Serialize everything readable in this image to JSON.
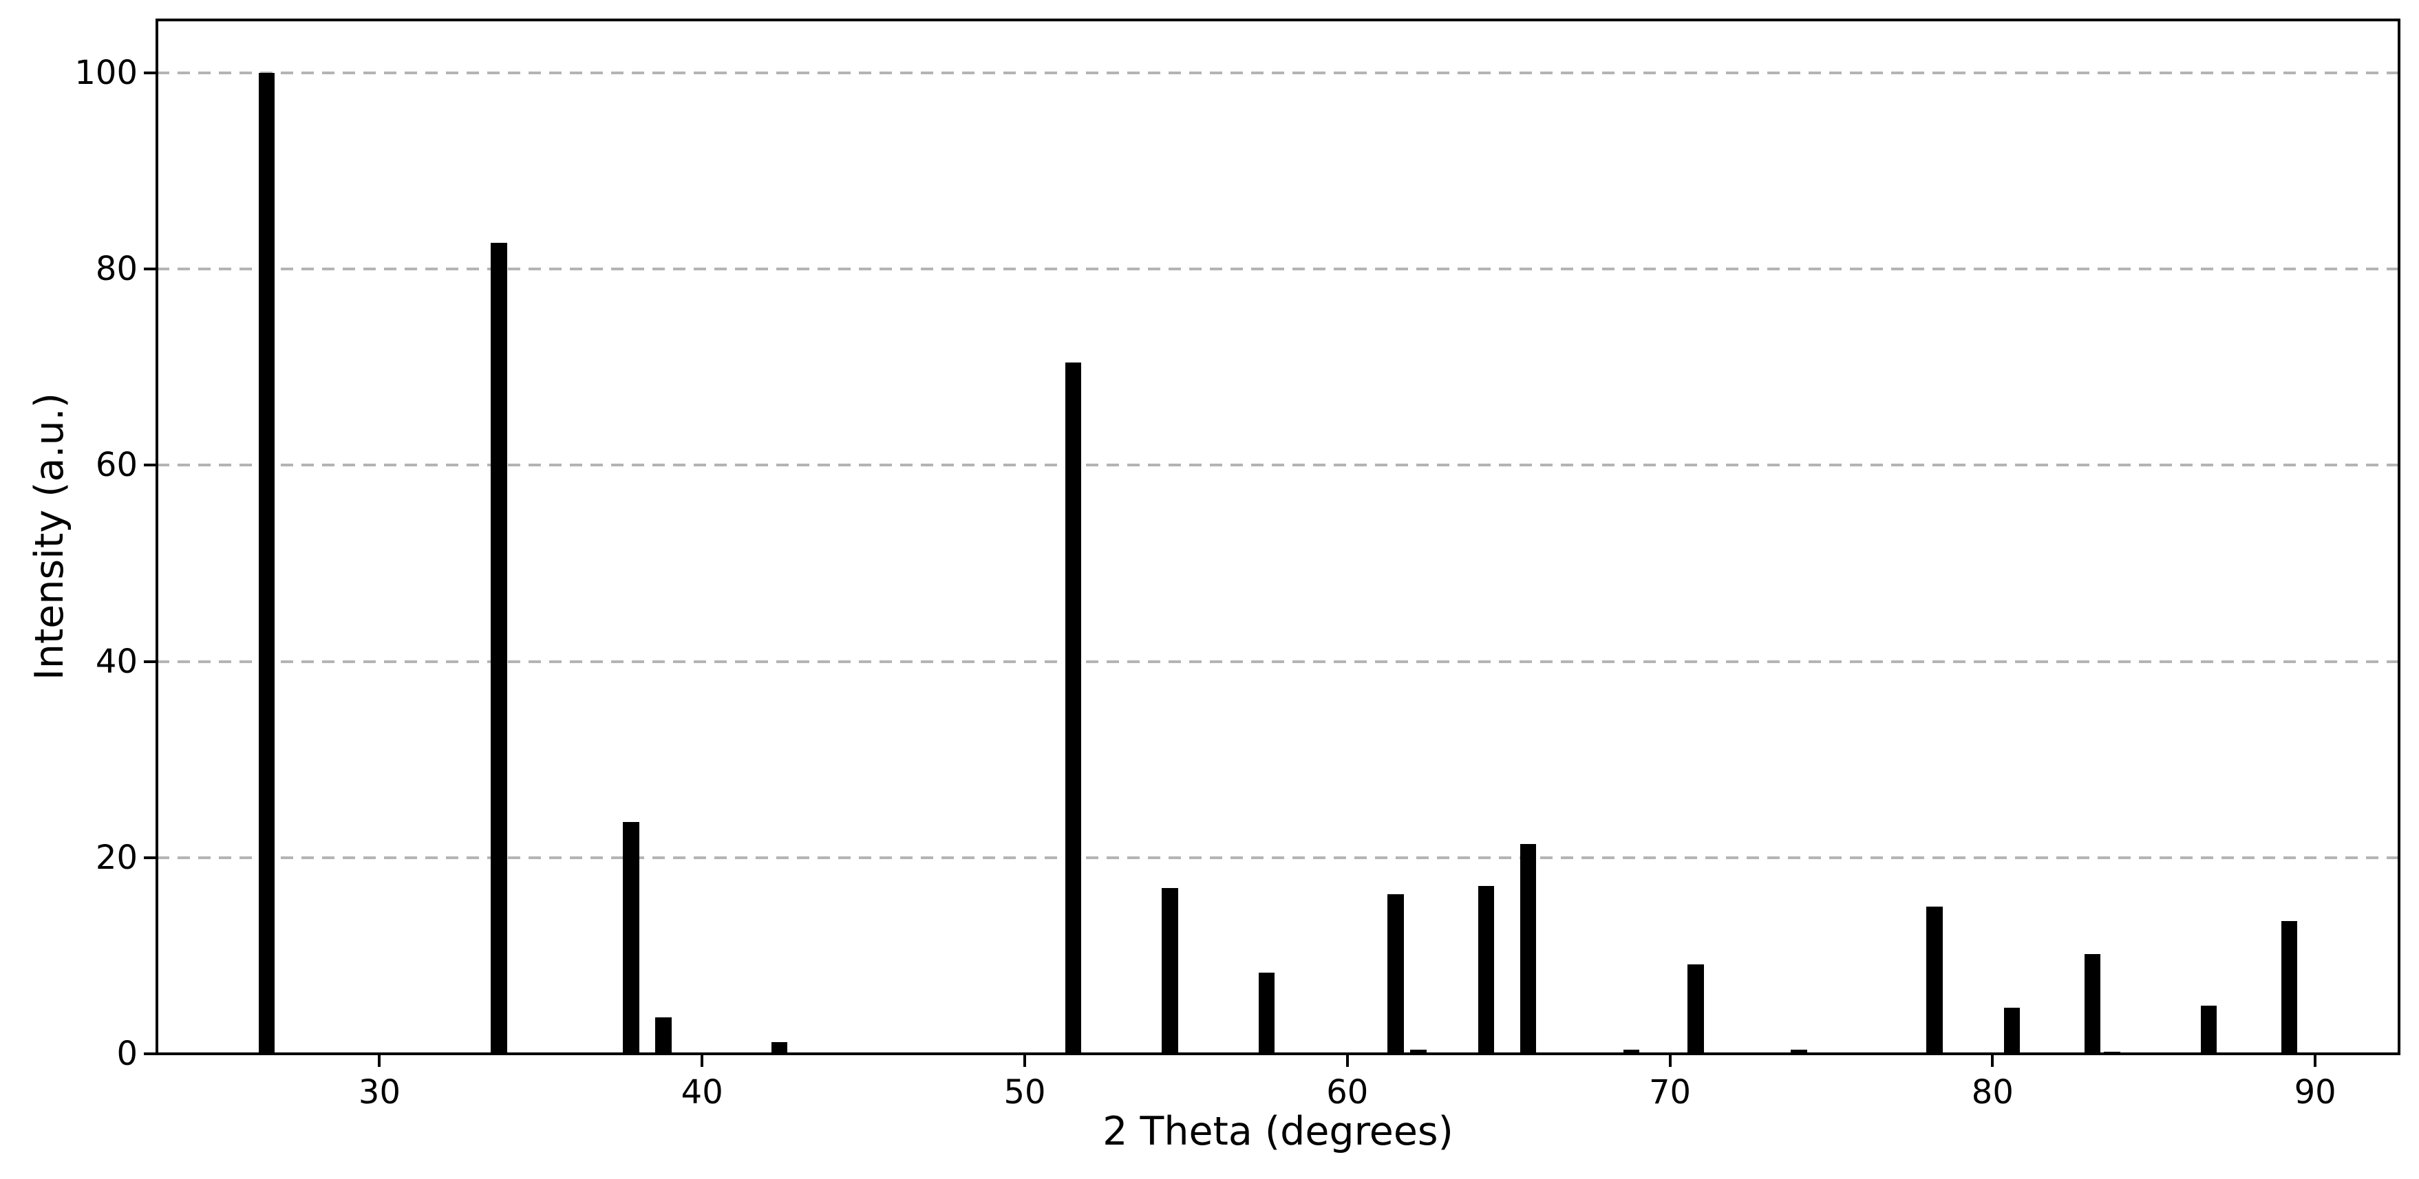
{
  "chart_data": {
    "type": "bar",
    "title": "",
    "xlabel": "2 Theta (degrees)",
    "ylabel": "Intensity (a.u.)",
    "xlim": [
      23.1,
      92.6
    ],
    "ylim": [
      0,
      105.4
    ],
    "xticks": [
      30,
      40,
      50,
      60,
      70,
      80,
      90
    ],
    "yticks": [
      0,
      20,
      40,
      60,
      80,
      100
    ],
    "grid": "horizontal dashed, y-ticks only",
    "grid_color": "#b4b4b4",
    "bar_color": "#000000",
    "background_color": "#ffffff",
    "bar_width_degrees": 0.5,
    "legend": "none",
    "x": [
      26.5,
      33.7,
      37.8,
      38.8,
      42.4,
      51.5,
      54.5,
      57.5,
      61.5,
      62.2,
      64.3,
      65.6,
      68.8,
      70.8,
      74.0,
      78.2,
      80.6,
      83.1,
      83.7,
      86.7,
      89.2
    ],
    "values": [
      100.0,
      82.7,
      23.6,
      3.7,
      1.2,
      70.5,
      16.9,
      8.3,
      16.3,
      0.4,
      17.1,
      21.4,
      0.4,
      9.1,
      0.4,
      15.0,
      4.7,
      10.2,
      0.2,
      4.9,
      13.5
    ]
  }
}
